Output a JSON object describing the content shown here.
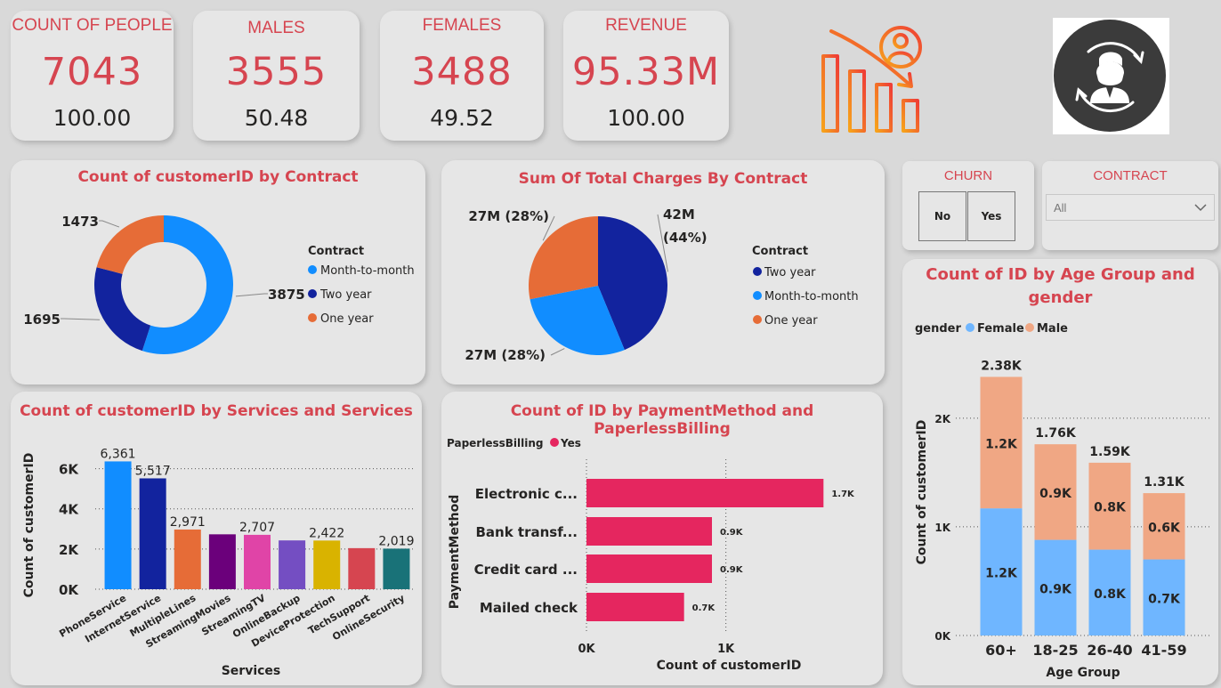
{
  "kpis": [
    {
      "title": "COUNT OF PEOPLE",
      "value": "7043",
      "sub": "100.00"
    },
    {
      "title": "MALES",
      "value": "3555",
      "sub": "50.48"
    },
    {
      "title": "FEMALES",
      "value": "3488",
      "sub": "49.52"
    },
    {
      "title": "REVENUE",
      "value": "95.33M",
      "sub": "100.00"
    }
  ],
  "slicers": {
    "churn": {
      "title": "CHURN",
      "buttons": [
        "No",
        "Yes"
      ]
    },
    "contract": {
      "title": "CONTRACT",
      "selected": "All"
    }
  },
  "colors": {
    "accent": "#d64550",
    "month_to_month": "#118dff",
    "two_year": "#12239e",
    "one_year": "#e66c37",
    "female": "#6fb6ff",
    "male": "#f0a784",
    "yes": "#e5265f"
  },
  "icons": [
    "churn-chart-icon",
    "customer-churn-icon",
    "chevron-down-icon"
  ],
  "chart_data": [
    {
      "type": "pie",
      "donut": true,
      "title": "Count of customerID by Contract",
      "legend_title": "Contract",
      "legend_position": "right",
      "slices": [
        {
          "label": "Month-to-month",
          "value": 3875,
          "data_label": "3875"
        },
        {
          "label": "Two year",
          "value": 1695,
          "data_label": "1695"
        },
        {
          "label": "One year",
          "value": 1473,
          "data_label": "1473"
        }
      ]
    },
    {
      "type": "pie",
      "title": "Sum Of Total Charges By Contract",
      "legend_title": "Contract",
      "legend_position": "right",
      "slices": [
        {
          "label": "Two year",
          "value": 42,
          "data_label": "42M (44%)"
        },
        {
          "label": "Month-to-month",
          "value": 27,
          "data_label": "27M (28%)"
        },
        {
          "label": "One year",
          "value": 27,
          "data_label": "27M (28%)"
        }
      ]
    },
    {
      "type": "bar",
      "title": "Count of customerID by Services and Services",
      "xlabel": "Services",
      "ylabel": "Count of customerID",
      "ylim": [
        0,
        7000
      ],
      "yticks": [
        {
          "v": 0,
          "label": "0K"
        },
        {
          "v": 2000,
          "label": "2K"
        },
        {
          "v": 4000,
          "label": "4K"
        },
        {
          "v": 6000,
          "label": "6K"
        }
      ],
      "grid": true,
      "categories": [
        "PhoneService",
        "InternetService",
        "MultipleLines",
        "StreamingMovies",
        "StreamingTV",
        "OnlineBackup",
        "DeviceProtection",
        "TechSupport",
        "OnlineSecurity"
      ],
      "values": [
        6361,
        5517,
        2971,
        2732,
        2707,
        2429,
        2422,
        2044,
        2019
      ],
      "labels": [
        "6,361",
        "5,517",
        "2,971",
        "",
        "2,707",
        "",
        "2,422",
        "",
        "2,019"
      ],
      "colors": [
        "#118dff",
        "#12239e",
        "#e66c37",
        "#6b007b",
        "#e044a7",
        "#744ec2",
        "#d9b300",
        "#d64550",
        "#197278"
      ]
    },
    {
      "type": "bar",
      "orientation": "horizontal",
      "title": "Count of ID by PaymentMethod and PaperlessBilling",
      "legend_title": "PaperlessBilling",
      "legend_position": "top-left",
      "series": [
        {
          "name": "Yes",
          "values": [
            1700,
            900,
            900,
            700
          ],
          "labels": [
            "1.7K",
            "0.9K",
            "0.9K",
            "0.7K"
          ]
        }
      ],
      "categories": [
        "Electronic c...",
        "Bank transf...",
        "Credit card ...",
        "Mailed check"
      ],
      "xlabel": "Count of customerID",
      "ylabel": "PaymentMethod",
      "xlim": [
        0,
        1800
      ],
      "xticks": [
        {
          "v": 0,
          "label": "0K"
        },
        {
          "v": 1000,
          "label": "1K"
        }
      ],
      "grid": true
    },
    {
      "type": "bar",
      "stacked": true,
      "title": "Count of ID by Age Group and gender",
      "legend_title": "gender",
      "legend_position": "top-left",
      "categories": [
        "60+",
        "18-25",
        "26-40",
        "41-59"
      ],
      "series": [
        {
          "name": "Female",
          "values": [
            1170,
            880,
            790,
            700
          ],
          "labels": [
            "1.2K",
            "0.9K",
            "0.8K",
            "0.7K"
          ]
        },
        {
          "name": "Male",
          "values": [
            1210,
            880,
            800,
            610
          ],
          "labels": [
            "1.2K",
            "0.9K",
            "0.8K",
            "0.6K"
          ]
        }
      ],
      "totals": [
        "2.38K",
        "1.76K",
        "1.59K",
        "1.31K"
      ],
      "xlabel": "Age Group",
      "ylabel": "Count of customerID",
      "ylim": [
        0,
        2400
      ],
      "yticks": [
        {
          "v": 0,
          "label": "0K"
        },
        {
          "v": 1000,
          "label": "1K"
        },
        {
          "v": 2000,
          "label": "2K"
        }
      ],
      "grid": true
    }
  ]
}
